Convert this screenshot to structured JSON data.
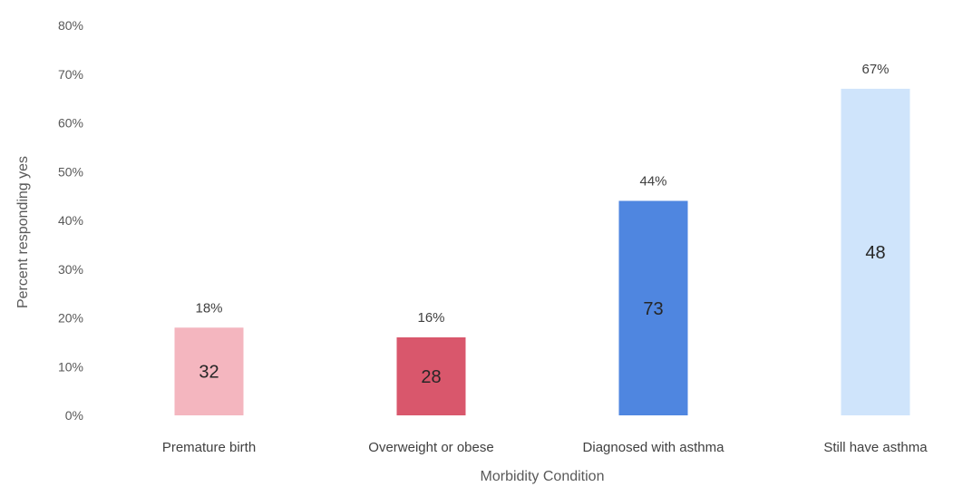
{
  "chart_data": {
    "type": "bar",
    "categories": [
      "Premature birth",
      "Overweight or obese",
      "Diagnosed with asthma",
      "Still have asthma"
    ],
    "values": [
      18,
      16,
      44,
      67
    ],
    "percent_labels": [
      "18%",
      "16%",
      "44%",
      "67%"
    ],
    "count_labels": [
      "32",
      "28",
      "73",
      "48"
    ],
    "colors": [
      "#f4b6bf",
      "#d9576c",
      "#4f86e0",
      "#cfe4fb"
    ],
    "xlabel": "Morbidity Condition",
    "ylabel": "Percent responding yes",
    "ylim": [
      0,
      80
    ],
    "yticks": [
      "0%",
      "10%",
      "20%",
      "30%",
      "40%",
      "50%",
      "60%",
      "70%",
      "80%"
    ],
    "grid": false,
    "legend": "none"
  }
}
